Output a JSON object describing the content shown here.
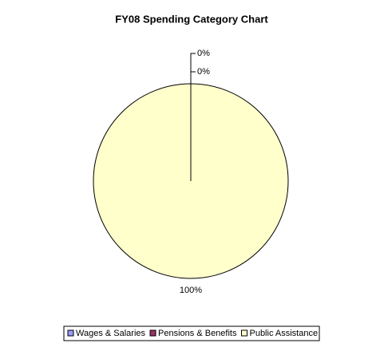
{
  "chart_data": {
    "type": "pie",
    "title": "FY08 Spending Category Chart",
    "categories": [
      "Wages & Salaries",
      "Pensions & Benefits",
      "Public Assistance"
    ],
    "values": [
      0,
      0,
      100
    ],
    "value_labels": [
      "0%",
      "0%",
      "100%"
    ],
    "colors": [
      "#9999ff",
      "#993366",
      "#ffffcc"
    ]
  }
}
